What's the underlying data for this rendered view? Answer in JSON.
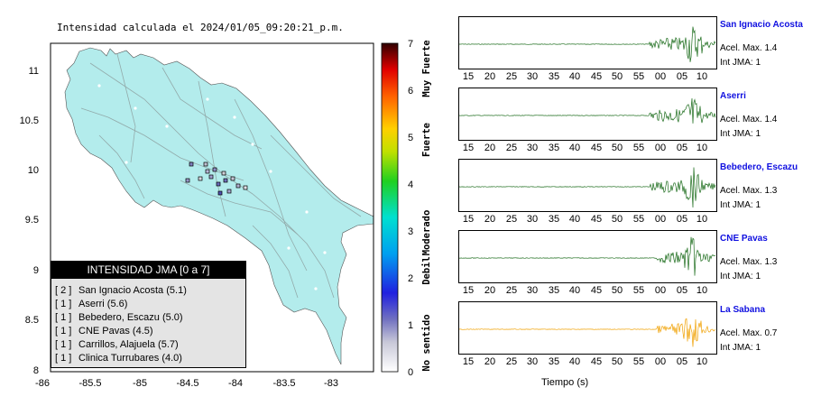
{
  "map": {
    "title": "Intensidad calculada el 2024/01/05_09:20:21_p.m.",
    "xlim": [
      -86,
      -82.6
    ],
    "ylim": [
      8,
      11.3
    ],
    "x_ticks": [
      "-86",
      "-85.5",
      "-85",
      "-84.5",
      "-84",
      "-83.5",
      "-83"
    ],
    "y_ticks": [
      "11",
      "10.5",
      "10",
      "9.5",
      "9",
      "8.5",
      "8"
    ],
    "land_color": "#b3ecec",
    "legend": {
      "title": "INTENSIDAD JMA [0 a 7]",
      "items": [
        {
          "count": "[ 2 ]",
          "name": "San Ignacio Acosta (5.1)"
        },
        {
          "count": "[ 1 ]",
          "name": "Aserri (5.6)"
        },
        {
          "count": "[ 1 ]",
          "name": "Bebedero, Escazu (5.0)"
        },
        {
          "count": "[ 1 ]",
          "name": "CNE Pavas (4.5)"
        },
        {
          "count": "[ 1 ]",
          "name": "Carrillos, Alajuela (5.7)"
        },
        {
          "count": "[ 1 ]",
          "name": "Clinica Turrubares (4.0)"
        }
      ]
    }
  },
  "colorbar": {
    "ticks": [
      "7",
      "6",
      "5",
      "4",
      "3",
      "2",
      "1",
      "0"
    ],
    "labels": [
      "Muy Fuerte",
      "Fuerte",
      "Moderado",
      "Debil",
      "No sentido"
    ],
    "range": [
      0,
      7
    ]
  },
  "waveforms": {
    "tick_labels": [
      "15",
      "20",
      "25",
      "30",
      "35",
      "40",
      "45",
      "50",
      "55",
      "00",
      "05",
      "10"
    ],
    "x_label": "Tiempo (s)",
    "stations": [
      {
        "name": "San Ignacio Acosta",
        "acc": "Acel. Max. 1.4",
        "int": "Int JMA: 1",
        "color": "#1a6b1a"
      },
      {
        "name": "Aserri",
        "acc": "Acel. Max. 1.4",
        "int": "Int JMA: 1",
        "color": "#1a6b1a"
      },
      {
        "name": "Bebedero, Escazu",
        "acc": "Acel. Max. 1.3",
        "int": "Int JMA: 1",
        "color": "#1a6b1a"
      },
      {
        "name": "CNE Pavas",
        "acc": "Acel. Max. 1.3",
        "int": "Int JMA: 1",
        "color": "#1a6b1a"
      },
      {
        "name": "La Sabana",
        "acc": "Acel. Max. 0.7",
        "int": "Int JMA: 1",
        "color": "#f0a000"
      }
    ]
  }
}
